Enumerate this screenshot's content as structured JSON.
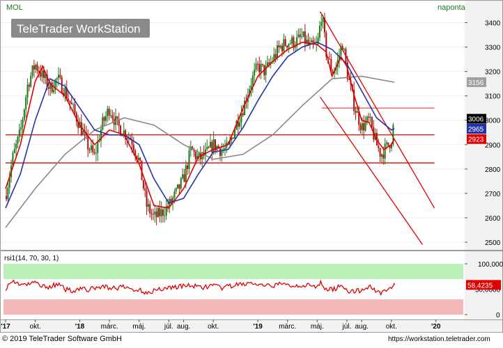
{
  "header": {
    "symbol": "MOL",
    "period": "naponta",
    "logo": "TeleTrader WorkStation"
  },
  "footer": {
    "copyright": "© 2019 TeleTrader Software GmbH",
    "url": "https://workstation.teletrader.com"
  },
  "colors": {
    "price_up": "#1a7a1a",
    "price_down": "#b01010",
    "ma_fast": "#e00000",
    "ma_mid": "#2233aa",
    "ma_slow": "#888888",
    "support_line": "#e00000",
    "rsi_line": "#e00000",
    "rsi_overbought_zone": "#b8f0b8",
    "rsi_oversold_zone": "#f5b8b8",
    "background": "#ffffff",
    "axis_panel": "#f0f0f0"
  },
  "chart_data": [
    {
      "type": "candlestick",
      "title": "MOL",
      "y_ticks": [
        2500,
        2600,
        2700,
        2800,
        2900,
        3000,
        3100,
        3200,
        3300,
        3400
      ],
      "ylim": [
        2480,
        3470
      ],
      "x_ticks": [
        "'17",
        "okt.",
        "'18",
        "márc.",
        "máj.",
        "júl.",
        "aug.",
        "okt.",
        "'19",
        "márc.",
        "máj.",
        "júl.",
        "aug.",
        "okt.",
        "'20"
      ],
      "x_tick_months": [
        0,
        2,
        5,
        7,
        9,
        11,
        12,
        14,
        17,
        19,
        21,
        23,
        24,
        26,
        29
      ],
      "price_tags": [
        {
          "label": "3156",
          "value": 3156,
          "color": "#a0a0a0"
        },
        {
          "label": "3006",
          "value": 3006,
          "color": "#000000"
        },
        {
          "label": "2965",
          "value": 2965,
          "color": "#2233aa"
        },
        {
          "label": "2923",
          "value": 2923,
          "color": "#e00000"
        }
      ],
      "horizontal_lines": [
        {
          "value": 2940,
          "from_month": 0,
          "to_month": 28.9
        },
        {
          "value": 2825,
          "from_month": 0,
          "to_month": 28.9
        },
        {
          "value": 3050,
          "from_month": 21.3,
          "to_month": 28.9
        }
      ],
      "trend_channel": {
        "upper": [
          [
            21.2,
            3445
          ],
          [
            28.9,
            2640
          ]
        ],
        "lower": [
          [
            21.2,
            3095
          ],
          [
            28.1,
            2490
          ]
        ]
      },
      "price_path": [
        [
          0,
          2690
        ],
        [
          0.5,
          2850
        ],
        [
          1,
          2950
        ],
        [
          1.5,
          3150
        ],
        [
          2,
          3230
        ],
        [
          2.5,
          3180
        ],
        [
          3,
          3130
        ],
        [
          3.5,
          3170
        ],
        [
          4,
          3120
        ],
        [
          4.5,
          3050
        ],
        [
          5,
          2980
        ],
        [
          5.5,
          2900
        ],
        [
          6,
          2850
        ],
        [
          6.5,
          2980
        ],
        [
          7,
          3050
        ],
        [
          7.5,
          2980
        ],
        [
          8,
          2950
        ],
        [
          8.5,
          2920
        ],
        [
          9,
          2830
        ],
        [
          9.5,
          2650
        ],
        [
          10,
          2600
        ],
        [
          10.5,
          2620
        ],
        [
          11,
          2650
        ],
        [
          11.5,
          2700
        ],
        [
          12,
          2760
        ],
        [
          12.5,
          2880
        ],
        [
          13,
          2840
        ],
        [
          13.5,
          2860
        ],
        [
          14,
          2900
        ],
        [
          14.5,
          2880
        ],
        [
          15,
          2880
        ],
        [
          15.5,
          2980
        ],
        [
          16,
          3050
        ],
        [
          16.5,
          3150
        ],
        [
          17,
          3220
        ],
        [
          17.5,
          3200
        ],
        [
          18,
          3250
        ],
        [
          18.5,
          3300
        ],
        [
          19,
          3320
        ],
        [
          19.5,
          3320
        ],
        [
          20,
          3340
        ],
        [
          20.5,
          3300
        ],
        [
          21,
          3300
        ],
        [
          21.3,
          3440
        ],
        [
          21.6,
          3280
        ],
        [
          22,
          3200
        ],
        [
          22.3,
          3220
        ],
        [
          22.7,
          3320
        ],
        [
          23,
          3200
        ],
        [
          23.5,
          3060
        ],
        [
          24,
          2970
        ],
        [
          24.5,
          3000
        ],
        [
          25,
          2900
        ],
        [
          25.3,
          2860
        ],
        [
          25.7,
          2890
        ],
        [
          26,
          2920
        ],
        [
          26.2,
          3006
        ]
      ],
      "ma_fast": [
        [
          0,
          2720
        ],
        [
          1,
          2900
        ],
        [
          2,
          3160
        ],
        [
          2.5,
          3220
        ],
        [
          3,
          3150
        ],
        [
          4,
          3100
        ],
        [
          5,
          2980
        ],
        [
          6,
          2900
        ],
        [
          7,
          2960
        ],
        [
          8,
          2940
        ],
        [
          9,
          2820
        ],
        [
          10,
          2650
        ],
        [
          11,
          2640
        ],
        [
          12,
          2720
        ],
        [
          13,
          2850
        ],
        [
          14,
          2880
        ],
        [
          15,
          2900
        ],
        [
          16,
          3050
        ],
        [
          17,
          3180
        ],
        [
          18,
          3240
        ],
        [
          19,
          3290
        ],
        [
          20,
          3320
        ],
        [
          21,
          3310
        ],
        [
          21.6,
          3280
        ],
        [
          22,
          3180
        ],
        [
          22.6,
          3260
        ],
        [
          23,
          3220
        ],
        [
          23.5,
          3100
        ],
        [
          24,
          3000
        ],
        [
          24.5,
          2990
        ],
        [
          25,
          2920
        ],
        [
          25.5,
          2880
        ],
        [
          26,
          2900
        ],
        [
          26.2,
          2923
        ]
      ],
      "ma_mid": [
        [
          0,
          2640
        ],
        [
          1,
          2780
        ],
        [
          2,
          3000
        ],
        [
          3,
          3170
        ],
        [
          4,
          3140
        ],
        [
          5,
          3050
        ],
        [
          6,
          2960
        ],
        [
          7,
          2940
        ],
        [
          8,
          2940
        ],
        [
          9,
          2900
        ],
        [
          10,
          2760
        ],
        [
          11,
          2660
        ],
        [
          12,
          2680
        ],
        [
          13,
          2780
        ],
        [
          14,
          2870
        ],
        [
          15,
          2880
        ],
        [
          16,
          2970
        ],
        [
          17,
          3080
        ],
        [
          18,
          3180
        ],
        [
          19,
          3260
        ],
        [
          20,
          3300
        ],
        [
          21,
          3320
        ],
        [
          22,
          3290
        ],
        [
          23,
          3230
        ],
        [
          24,
          3120
        ],
        [
          25,
          3010
        ],
        [
          26,
          2960
        ],
        [
          26.2,
          2965
        ]
      ],
      "ma_slow": [
        [
          0,
          2560
        ],
        [
          2,
          2720
        ],
        [
          4,
          2860
        ],
        [
          6,
          2960
        ],
        [
          8,
          3010
        ],
        [
          10,
          2980
        ],
        [
          12,
          2900
        ],
        [
          14,
          2840
        ],
        [
          16,
          2860
        ],
        [
          18,
          2940
        ],
        [
          20,
          3060
        ],
        [
          22,
          3170
        ],
        [
          24,
          3180
        ],
        [
          26.2,
          3156
        ]
      ]
    },
    {
      "type": "line",
      "title": "rsi1(14, 70, 30, 1)",
      "y_ticks": [
        "0",
        "100,0000"
      ],
      "ylim": [
        0,
        100
      ],
      "overbought": 70,
      "oversold": 30,
      "current_value": 58.4235,
      "current_label": "58,4235",
      "mid_label": "50,0000",
      "rsi_path": [
        [
          0,
          52
        ],
        [
          0.5,
          66
        ],
        [
          1,
          60
        ],
        [
          1.5,
          58
        ],
        [
          2,
          64
        ],
        [
          2.5,
          56
        ],
        [
          3,
          55
        ],
        [
          3.5,
          60
        ],
        [
          4,
          50
        ],
        [
          4.5,
          47
        ],
        [
          5,
          52
        ],
        [
          5.5,
          49
        ],
        [
          6,
          51
        ],
        [
          6.5,
          56
        ],
        [
          7,
          53
        ],
        [
          7.5,
          52
        ],
        [
          8,
          54
        ],
        [
          8.5,
          50
        ],
        [
          9,
          48
        ],
        [
          9.5,
          44
        ],
        [
          10,
          47
        ],
        [
          10.5,
          51
        ],
        [
          11,
          53
        ],
        [
          11.5,
          55
        ],
        [
          12,
          56
        ],
        [
          12.5,
          58
        ],
        [
          13,
          53
        ],
        [
          13.5,
          55
        ],
        [
          14,
          57
        ],
        [
          14.5,
          52
        ],
        [
          15,
          55
        ],
        [
          15.5,
          58
        ],
        [
          16,
          60
        ],
        [
          16.5,
          62
        ],
        [
          17,
          58
        ],
        [
          17.5,
          55
        ],
        [
          18,
          57
        ],
        [
          18.5,
          60
        ],
        [
          19,
          58
        ],
        [
          19.5,
          57
        ],
        [
          20,
          59
        ],
        [
          20.5,
          56
        ],
        [
          21,
          53
        ],
        [
          21.3,
          64
        ],
        [
          21.6,
          48
        ],
        [
          22,
          50
        ],
        [
          22.3,
          52
        ],
        [
          22.7,
          60
        ],
        [
          23,
          47
        ],
        [
          23.5,
          45
        ],
        [
          24,
          48
        ],
        [
          24.5,
          56
        ],
        [
          25,
          46
        ],
        [
          25.3,
          44
        ],
        [
          25.7,
          50
        ],
        [
          26,
          54
        ],
        [
          26.2,
          58.4
        ]
      ]
    }
  ]
}
